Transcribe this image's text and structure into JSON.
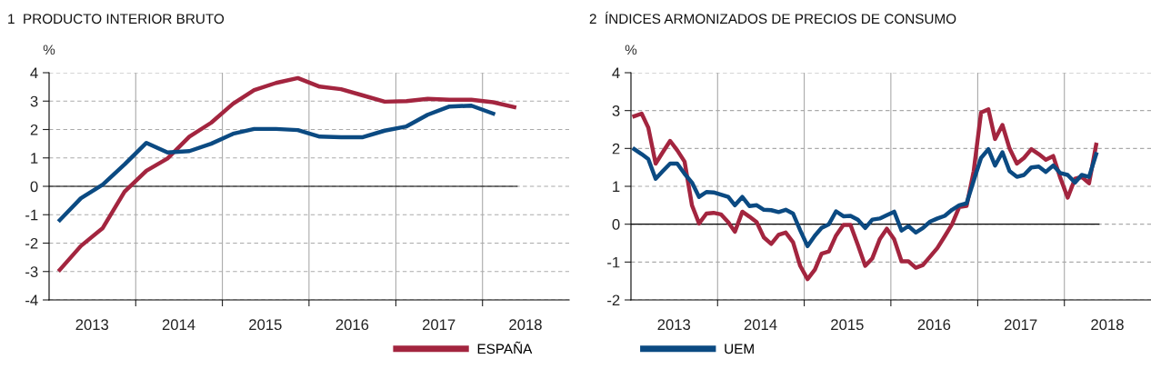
{
  "chart_data": [
    {
      "type": "line",
      "title": "1  PRODUCTO INTERIOR BRUTO",
      "ylabel": "%",
      "grid": true,
      "legend": "bottom",
      "ylim": [
        -4,
        4
      ],
      "yticks": [
        -4,
        -3,
        -2,
        -1,
        0,
        1,
        2,
        3,
        4
      ],
      "xlim": [
        "2013-01-01",
        "2019-01-01"
      ],
      "xticks": [
        {
          "value": "2013-07-01",
          "label": "2013"
        },
        {
          "value": "2014-01-01",
          "label": null
        },
        {
          "value": "2014-07-01",
          "label": "2014"
        },
        {
          "value": "2015-01-01",
          "label": null
        },
        {
          "value": "2015-07-01",
          "label": "2015"
        },
        {
          "value": "2016-01-01",
          "label": null
        },
        {
          "value": "2016-07-01",
          "label": "2016"
        },
        {
          "value": "2017-01-01",
          "label": null
        },
        {
          "value": "2017-07-01",
          "label": "2017"
        },
        {
          "value": "2018-01-01",
          "label": null
        },
        {
          "value": "2018-07-01",
          "label": "2018"
        }
      ],
      "ref_lines": [
        {
          "axis": "y",
          "value": 0,
          "color": "#000000"
        }
      ],
      "series": [
        {
          "name": "ESPAÑA",
          "color": "#a3253f",
          "x": [
            "2013-02-15",
            "2013-05-15",
            "2013-08-15",
            "2013-11-15",
            "2014-02-15",
            "2014-05-15",
            "2014-08-15",
            "2014-11-15",
            "2015-02-15",
            "2015-05-15",
            "2015-08-15",
            "2015-11-15",
            "2016-02-15",
            "2016-05-15",
            "2016-08-15",
            "2016-11-15",
            "2017-02-15",
            "2017-05-15",
            "2017-08-15",
            "2017-11-15",
            "2018-02-15",
            "2018-05-15"
          ],
          "values": [
            -2.94,
            -2.1,
            -1.47,
            -0.19,
            0.55,
            0.98,
            1.75,
            2.24,
            2.91,
            3.39,
            3.64,
            3.81,
            3.51,
            3.42,
            3.2,
            2.98,
            3.0,
            3.08,
            3.05,
            3.05,
            2.96,
            2.79
          ]
        },
        {
          "name": "UEM",
          "color": "#0b4a82",
          "x": [
            "2013-02-15",
            "2013-05-15",
            "2013-08-15",
            "2013-11-15",
            "2014-02-15",
            "2014-05-15",
            "2014-08-15",
            "2014-11-15",
            "2015-02-15",
            "2015-05-15",
            "2015-08-15",
            "2015-11-15",
            "2016-02-15",
            "2016-05-15",
            "2016-08-15",
            "2016-11-15",
            "2017-02-15",
            "2017-05-15",
            "2017-08-15",
            "2017-11-15",
            "2018-02-15"
          ],
          "values": [
            -1.19,
            -0.42,
            0.06,
            0.77,
            1.53,
            1.19,
            1.24,
            1.5,
            1.85,
            2.02,
            2.02,
            1.98,
            1.75,
            1.73,
            1.73,
            1.96,
            2.11,
            2.52,
            2.81,
            2.84,
            2.56
          ]
        }
      ]
    },
    {
      "type": "line",
      "title": "2  ÍNDICES ARMONIZADOS DE PRECIOS DE CONSUMO",
      "ylabel": "%",
      "grid": true,
      "ylim": [
        -2,
        4
      ],
      "yticks": [
        -2,
        -1,
        0,
        1,
        2,
        3,
        4
      ],
      "xlim": [
        "2013-01-01",
        "2019-01-01"
      ],
      "xticks": [
        {
          "value": "2013-07-01",
          "label": "2013"
        },
        {
          "value": "2014-01-01",
          "label": null
        },
        {
          "value": "2014-07-01",
          "label": "2014"
        },
        {
          "value": "2015-01-01",
          "label": null
        },
        {
          "value": "2015-07-01",
          "label": "2015"
        },
        {
          "value": "2016-01-01",
          "label": null
        },
        {
          "value": "2016-07-01",
          "label": "2016"
        },
        {
          "value": "2017-01-01",
          "label": null
        },
        {
          "value": "2017-07-01",
          "label": "2017"
        },
        {
          "value": "2018-01-01",
          "label": null
        },
        {
          "value": "2018-07-01",
          "label": "2018"
        }
      ],
      "ref_lines": [
        {
          "axis": "y",
          "value": 0,
          "color": "#000000"
        }
      ],
      "series": [
        {
          "name": "ESPAÑA",
          "color": "#a3253f",
          "values": [
            2.85,
            2.92,
            2.55,
            1.6,
            1.9,
            2.2,
            1.95,
            1.65,
            0.5,
            0.02,
            0.28,
            0.3,
            0.26,
            0.05,
            -0.2,
            0.33,
            0.2,
            0.05,
            -0.35,
            -0.52,
            -0.28,
            -0.22,
            -0.48,
            -1.1,
            -1.45,
            -1.2,
            -0.78,
            -0.72,
            -0.3,
            -0.02,
            -0.02,
            -0.55,
            -1.1,
            -0.9,
            -0.4,
            -0.12,
            -0.4,
            -0.98,
            -0.98,
            -1.15,
            -1.08,
            -0.85,
            -0.63,
            -0.32,
            0.0,
            0.45,
            0.48,
            1.4,
            2.95,
            3.03,
            2.25,
            2.62,
            2.0,
            1.6,
            1.75,
            1.98,
            1.85,
            1.7,
            1.8,
            1.22,
            0.7,
            1.2,
            1.25,
            1.08,
            2.1
          ]
        },
        {
          "name": "UEM",
          "color": "#0b4a82",
          "values": [
            1.98,
            1.85,
            1.72,
            1.2,
            1.4,
            1.6,
            1.6,
            1.33,
            1.1,
            0.72,
            0.85,
            0.84,
            0.78,
            0.72,
            0.5,
            0.72,
            0.48,
            0.5,
            0.38,
            0.37,
            0.32,
            0.38,
            0.28,
            -0.16,
            -0.58,
            -0.3,
            -0.1,
            0.0,
            0.34,
            0.21,
            0.22,
            0.12,
            -0.1,
            0.12,
            0.15,
            0.24,
            0.33,
            -0.17,
            -0.05,
            -0.22,
            -0.1,
            0.07,
            0.15,
            0.22,
            0.38,
            0.5,
            0.55,
            1.15,
            1.75,
            1.98,
            1.55,
            1.9,
            1.4,
            1.25,
            1.3,
            1.5,
            1.52,
            1.38,
            1.55,
            1.35,
            1.3,
            1.1,
            1.3,
            1.25,
            1.85
          ]
        }
      ],
      "x": [
        "2013-01-15",
        "2013-02-15",
        "2013-03-15",
        "2013-04-15",
        "2013-05-15",
        "2013-06-15",
        "2013-07-15",
        "2013-08-15",
        "2013-09-15",
        "2013-10-15",
        "2013-11-15",
        "2013-12-15",
        "2014-01-15",
        "2014-02-15",
        "2014-03-15",
        "2014-04-15",
        "2014-05-15",
        "2014-06-15",
        "2014-07-15",
        "2014-08-15",
        "2014-09-15",
        "2014-10-15",
        "2014-11-15",
        "2014-12-15",
        "2015-01-15",
        "2015-02-15",
        "2015-03-15",
        "2015-04-15",
        "2015-05-15",
        "2015-06-15",
        "2015-07-15",
        "2015-08-15",
        "2015-09-15",
        "2015-10-15",
        "2015-11-15",
        "2015-12-15",
        "2016-01-15",
        "2016-02-15",
        "2016-03-15",
        "2016-04-15",
        "2016-05-15",
        "2016-06-15",
        "2016-07-15",
        "2016-08-15",
        "2016-09-15",
        "2016-10-15",
        "2016-11-15",
        "2016-12-15",
        "2017-01-15",
        "2017-02-15",
        "2017-03-15",
        "2017-04-15",
        "2017-05-15",
        "2017-06-15",
        "2017-07-15",
        "2017-08-15",
        "2017-09-15",
        "2017-10-15",
        "2017-11-15",
        "2017-12-15",
        "2018-01-15",
        "2018-02-15",
        "2018-03-15",
        "2018-04-15",
        "2018-05-15"
      ]
    }
  ]
}
